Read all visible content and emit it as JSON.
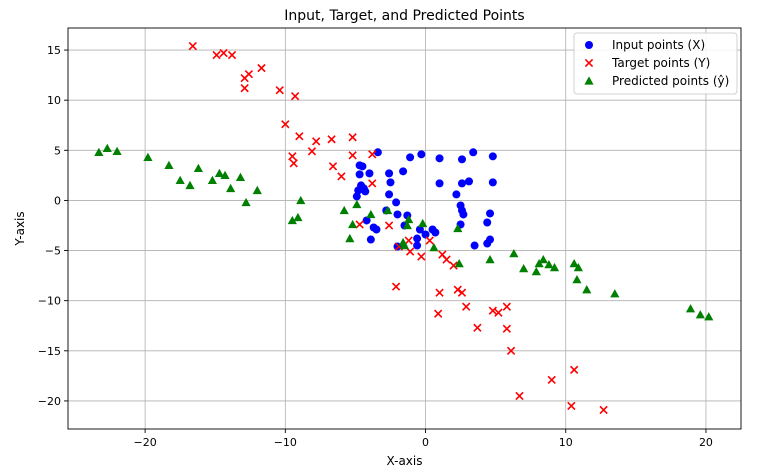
{
  "chart_data": {
    "type": "scatter",
    "title": "Input, Target, and Predicted Points",
    "xlabel": "X-axis",
    "ylabel": "Y-axis",
    "xlim": [
      -25.5,
      22.5
    ],
    "ylim": [
      -22.8,
      17.2
    ],
    "xticks": [
      -20,
      -10,
      0,
      10,
      20
    ],
    "yticks": [
      -20,
      -15,
      -10,
      -5,
      0,
      5,
      10,
      15
    ],
    "xtick_labels": [
      "−20",
      "−10",
      "0",
      "10",
      "20"
    ],
    "ytick_labels": [
      "−20",
      "−15",
      "−10",
      "−5",
      "0",
      "5",
      "10",
      "15"
    ],
    "grid": true,
    "legend_position": "top-right",
    "series": [
      {
        "name": "Input points (X)",
        "marker": "circle",
        "color": "#0000ff",
        "points": [
          [
            -3.4,
            4.8
          ],
          [
            -4.0,
            2.7
          ],
          [
            -4.7,
            3.5
          ],
          [
            -4.5,
            3.4
          ],
          [
            -4.7,
            2.6
          ],
          [
            -4.9,
            0.4
          ],
          [
            -4.6,
            1.5
          ],
          [
            -4.4,
            1.2
          ],
          [
            -4.8,
            1.0
          ],
          [
            -4.3,
            0.9
          ],
          [
            -4.2,
            -2.0
          ],
          [
            -3.7,
            -2.7
          ],
          [
            -3.5,
            -2.9
          ],
          [
            -3.9,
            -3.9
          ],
          [
            -2.6,
            2.7
          ],
          [
            -2.5,
            1.8
          ],
          [
            -1.6,
            2.9
          ],
          [
            -1.1,
            4.3
          ],
          [
            -0.3,
            4.6
          ],
          [
            -2.6,
            0.6
          ],
          [
            -2.1,
            -0.2
          ],
          [
            -2.0,
            -1.4
          ],
          [
            -1.3,
            -1.5
          ],
          [
            -2.8,
            -1.0
          ],
          [
            -1.5,
            -2.5
          ],
          [
            -0.4,
            -2.9
          ],
          [
            -0.6,
            -3.8
          ],
          [
            -0.6,
            -4.5
          ],
          [
            0.5,
            -2.9
          ],
          [
            0.7,
            -3.2
          ],
          [
            1.0,
            4.2
          ],
          [
            1.0,
            1.7
          ],
          [
            2.6,
            4.1
          ],
          [
            3.4,
            4.8
          ],
          [
            4.8,
            4.4
          ],
          [
            4.8,
            1.8
          ],
          [
            3.1,
            1.9
          ],
          [
            2.6,
            1.7
          ],
          [
            2.2,
            0.6
          ],
          [
            2.5,
            -0.5
          ],
          [
            2.6,
            -1.0
          ],
          [
            2.7,
            -1.4
          ],
          [
            4.4,
            -2.2
          ],
          [
            4.6,
            -1.3
          ],
          [
            2.5,
            -2.4
          ],
          [
            4.6,
            -3.9
          ],
          [
            4.4,
            -4.3
          ],
          [
            3.5,
            -4.5
          ],
          [
            0.0,
            -3.4
          ],
          [
            -2.0,
            -4.6
          ]
        ]
      },
      {
        "name": "Target points (Y)",
        "marker": "x",
        "color": "#ff0000",
        "points": [
          [
            -16.6,
            15.4
          ],
          [
            -14.9,
            14.5
          ],
          [
            -14.4,
            14.7
          ],
          [
            -13.8,
            14.5
          ],
          [
            -11.7,
            13.2
          ],
          [
            -12.6,
            12.6
          ],
          [
            -12.9,
            12.2
          ],
          [
            -12.9,
            11.2
          ],
          [
            -10.4,
            11.0
          ],
          [
            -9.3,
            10.4
          ],
          [
            -10.0,
            7.6
          ],
          [
            -9.0,
            6.4
          ],
          [
            -7.8,
            5.9
          ],
          [
            -6.7,
            6.1
          ],
          [
            -5.2,
            6.3
          ],
          [
            -8.1,
            4.9
          ],
          [
            -9.5,
            4.4
          ],
          [
            -9.4,
            3.7
          ],
          [
            -6.6,
            3.4
          ],
          [
            -6.0,
            2.4
          ],
          [
            -5.2,
            4.5
          ],
          [
            -3.8,
            4.6
          ],
          [
            -3.8,
            1.7
          ],
          [
            -4.7,
            -2.4
          ],
          [
            -2.6,
            -2.5
          ],
          [
            -1.2,
            -4.0
          ],
          [
            -1.1,
            -5.1
          ],
          [
            -1.9,
            -4.6
          ],
          [
            -0.3,
            -5.6
          ],
          [
            0.3,
            -4.0
          ],
          [
            1.2,
            -5.4
          ],
          [
            1.5,
            -5.9
          ],
          [
            2.0,
            -6.5
          ],
          [
            2.3,
            -8.9
          ],
          [
            2.6,
            -9.2
          ],
          [
            1.0,
            -9.2
          ],
          [
            0.9,
            -11.3
          ],
          [
            2.9,
            -10.6
          ],
          [
            3.7,
            -12.7
          ],
          [
            4.8,
            -11.0
          ],
          [
            5.2,
            -11.2
          ],
          [
            5.8,
            -10.6
          ],
          [
            5.8,
            -12.8
          ],
          [
            6.1,
            -15.0
          ],
          [
            -2.1,
            -8.6
          ],
          [
            6.7,
            -19.5
          ],
          [
            9.0,
            -17.9
          ],
          [
            10.6,
            -16.9
          ],
          [
            10.4,
            -20.5
          ],
          [
            12.7,
            -20.9
          ]
        ]
      },
      {
        "name": "Predicted points (ŷ)",
        "marker": "triangle",
        "color": "#008000",
        "points": [
          [
            -23.3,
            4.8
          ],
          [
            -22.7,
            5.2
          ],
          [
            -22.0,
            4.9
          ],
          [
            -19.8,
            4.3
          ],
          [
            -18.3,
            3.5
          ],
          [
            -17.5,
            2.0
          ],
          [
            -16.2,
            3.2
          ],
          [
            -16.8,
            1.5
          ],
          [
            -15.2,
            2.0
          ],
          [
            -14.7,
            2.7
          ],
          [
            -14.3,
            2.5
          ],
          [
            -13.9,
            1.2
          ],
          [
            -13.2,
            2.3
          ],
          [
            -12.8,
            -0.2
          ],
          [
            -12.0,
            1.0
          ],
          [
            -9.5,
            -2.0
          ],
          [
            -9.1,
            -1.7
          ],
          [
            -8.9,
            0.0
          ],
          [
            -5.8,
            -1.0
          ],
          [
            -5.4,
            -3.8
          ],
          [
            -5.2,
            -2.4
          ],
          [
            -4.9,
            -0.4
          ],
          [
            -3.9,
            -1.4
          ],
          [
            -2.7,
            -1.0
          ],
          [
            -1.6,
            -4.2
          ],
          [
            -1.5,
            -4.5
          ],
          [
            -1.2,
            -1.9
          ],
          [
            -1.3,
            -2.5
          ],
          [
            -0.2,
            -2.3
          ],
          [
            0.6,
            -4.7
          ],
          [
            2.3,
            -2.8
          ],
          [
            2.4,
            -6.3
          ],
          [
            4.6,
            -5.9
          ],
          [
            6.3,
            -5.3
          ],
          [
            7.0,
            -6.8
          ],
          [
            7.9,
            -7.1
          ],
          [
            8.1,
            -6.3
          ],
          [
            8.4,
            -5.9
          ],
          [
            8.8,
            -6.4
          ],
          [
            9.2,
            -6.7
          ],
          [
            10.6,
            -6.3
          ],
          [
            10.9,
            -6.7
          ],
          [
            10.8,
            -7.9
          ],
          [
            11.5,
            -8.9
          ],
          [
            13.5,
            -9.3
          ],
          [
            18.9,
            -10.8
          ],
          [
            19.6,
            -11.4
          ],
          [
            20.2,
            -11.6
          ]
        ]
      }
    ]
  }
}
